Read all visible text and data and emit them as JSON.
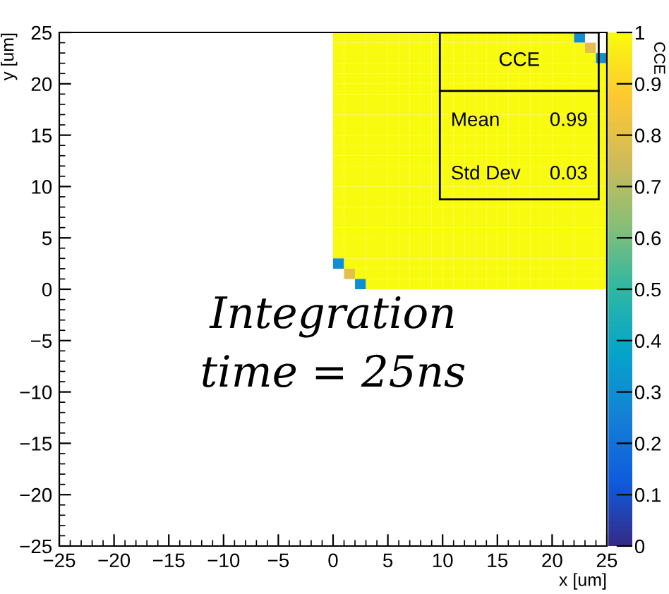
{
  "chart_data": {
    "type": "heatmap",
    "xlabel": "x [um]",
    "ylabel": "y [um]",
    "clabel": "CCE",
    "x": [
      0.5,
      1.5,
      2.5,
      3.5,
      4.5,
      5.5,
      6.5,
      7.5,
      8.5,
      9.5,
      10.5,
      11.5,
      12.5,
      13.5,
      14.5,
      15.5,
      16.5,
      17.5,
      18.5,
      19.5,
      20.5,
      21.5,
      22.5,
      23.5,
      24.5
    ],
    "y": [
      24.5,
      23.5,
      22.5,
      21.5,
      20.5,
      19.5,
      18.5,
      17.5,
      16.5,
      15.5,
      14.5,
      13.5,
      12.5,
      11.5,
      10.5,
      9.5,
      8.5,
      7.5,
      6.5,
      5.5,
      4.5,
      3.5,
      2.5,
      1.5,
      0.5
    ],
    "cells": [
      [
        1,
        1,
        1,
        1,
        1,
        1,
        1,
        1,
        1,
        1,
        1,
        1,
        1,
        1,
        1,
        1,
        1,
        1,
        1,
        1,
        1,
        1,
        0.3,
        null,
        null
      ],
      [
        1,
        1,
        1,
        1,
        1,
        1,
        1,
        1,
        1,
        1,
        1,
        1,
        1,
        1,
        1,
        1,
        1,
        1,
        1,
        1,
        1,
        1,
        1,
        0.8,
        null
      ],
      [
        1,
        1,
        1,
        1,
        1,
        1,
        1,
        1,
        1,
        1,
        1,
        1,
        1,
        1,
        1,
        1,
        1,
        1,
        1,
        1,
        1,
        1,
        1,
        1,
        0.3
      ],
      [
        1,
        1,
        1,
        1,
        1,
        1,
        1,
        1,
        1,
        1,
        1,
        1,
        1,
        1,
        1,
        1,
        1,
        1,
        1,
        1,
        1,
        1,
        1,
        1,
        1
      ],
      [
        1,
        1,
        1,
        1,
        1,
        1,
        1,
        1,
        1,
        1,
        1,
        1,
        1,
        1,
        1,
        1,
        1,
        1,
        1,
        1,
        1,
        1,
        1,
        1,
        1
      ],
      [
        1,
        1,
        1,
        1,
        1,
        1,
        1,
        1,
        1,
        1,
        1,
        1,
        1,
        1,
        1,
        1,
        1,
        1,
        1,
        1,
        1,
        1,
        1,
        1,
        1
      ],
      [
        1,
        1,
        1,
        1,
        1,
        1,
        1,
        1,
        1,
        1,
        1,
        1,
        1,
        1,
        1,
        1,
        1,
        1,
        1,
        1,
        1,
        1,
        1,
        1,
        1
      ],
      [
        1,
        1,
        1,
        1,
        1,
        1,
        1,
        1,
        1,
        1,
        1,
        1,
        1,
        1,
        1,
        1,
        1,
        1,
        1,
        1,
        1,
        1,
        1,
        1,
        1
      ],
      [
        1,
        1,
        1,
        1,
        1,
        1,
        1,
        1,
        1,
        1,
        1,
        1,
        1,
        1,
        1,
        1,
        1,
        1,
        1,
        1,
        1,
        1,
        1,
        1,
        1
      ],
      [
        1,
        1,
        1,
        1,
        1,
        1,
        1,
        1,
        1,
        1,
        1,
        1,
        1,
        1,
        1,
        1,
        1,
        1,
        1,
        1,
        1,
        1,
        1,
        1,
        1
      ],
      [
        1,
        1,
        1,
        1,
        1,
        1,
        1,
        1,
        1,
        1,
        1,
        1,
        1,
        1,
        1,
        1,
        1,
        1,
        1,
        1,
        1,
        1,
        1,
        1,
        1
      ],
      [
        1,
        1,
        1,
        1,
        1,
        1,
        1,
        1,
        1,
        1,
        1,
        1,
        1,
        1,
        1,
        1,
        1,
        1,
        1,
        1,
        1,
        1,
        1,
        1,
        1
      ],
      [
        1,
        1,
        1,
        1,
        1,
        1,
        1,
        1,
        1,
        1,
        1,
        1,
        1,
        1,
        1,
        1,
        1,
        1,
        1,
        1,
        1,
        1,
        1,
        1,
        1
      ],
      [
        1,
        1,
        1,
        1,
        1,
        1,
        1,
        1,
        1,
        1,
        1,
        1,
        1,
        1,
        1,
        1,
        1,
        1,
        1,
        1,
        1,
        1,
        1,
        1,
        1
      ],
      [
        1,
        1,
        1,
        1,
        1,
        1,
        1,
        1,
        1,
        1,
        1,
        1,
        1,
        1,
        1,
        1,
        1,
        1,
        1,
        1,
        1,
        1,
        1,
        1,
        1
      ],
      [
        1,
        1,
        1,
        1,
        1,
        1,
        1,
        1,
        1,
        1,
        1,
        1,
        1,
        1,
        1,
        1,
        1,
        1,
        1,
        1,
        1,
        1,
        1,
        1,
        1
      ],
      [
        1,
        1,
        1,
        1,
        1,
        1,
        1,
        1,
        1,
        1,
        1,
        1,
        1,
        1,
        1,
        1,
        1,
        1,
        1,
        1,
        1,
        1,
        1,
        1,
        1
      ],
      [
        1,
        1,
        1,
        1,
        1,
        1,
        1,
        1,
        1,
        1,
        1,
        1,
        1,
        1,
        1,
        1,
        1,
        1,
        1,
        1,
        1,
        1,
        1,
        1,
        1
      ],
      [
        1,
        1,
        1,
        1,
        1,
        1,
        1,
        1,
        1,
        1,
        1,
        1,
        1,
        1,
        1,
        1,
        1,
        1,
        1,
        1,
        1,
        1,
        1,
        1,
        1
      ],
      [
        1,
        1,
        1,
        1,
        1,
        1,
        1,
        1,
        1,
        1,
        1,
        1,
        1,
        1,
        1,
        1,
        1,
        1,
        1,
        1,
        1,
        1,
        1,
        1,
        1
      ],
      [
        1,
        1,
        1,
        1,
        1,
        1,
        1,
        1,
        1,
        1,
        1,
        1,
        1,
        1,
        1,
        1,
        1,
        1,
        1,
        1,
        1,
        1,
        1,
        1,
        1
      ],
      [
        1,
        1,
        1,
        1,
        1,
        1,
        1,
        1,
        1,
        1,
        1,
        1,
        1,
        1,
        1,
        1,
        1,
        1,
        1,
        1,
        1,
        1,
        1,
        1,
        1
      ],
      [
        0.3,
        1,
        1,
        1,
        1,
        1,
        1,
        1,
        1,
        1,
        1,
        1,
        1,
        1,
        1,
        1,
        1,
        1,
        1,
        1,
        1,
        1,
        1,
        1,
        1
      ],
      [
        null,
        0.8,
        1,
        1,
        1,
        1,
        1,
        1,
        1,
        1,
        1,
        1,
        1,
        1,
        1,
        1,
        1,
        1,
        1,
        1,
        1,
        1,
        1,
        1,
        1
      ],
      [
        null,
        null,
        0.3,
        1,
        1,
        1,
        1,
        1,
        1,
        1,
        1,
        1,
        1,
        1,
        1,
        1,
        1,
        1,
        1,
        1,
        1,
        1,
        1,
        1,
        1
      ]
    ],
    "xlim": [
      -25,
      25
    ],
    "ylim": [
      -25,
      25
    ],
    "xticks": [
      -25,
      -20,
      -15,
      -10,
      -5,
      0,
      5,
      10,
      15,
      20,
      25
    ],
    "yticks": [
      -25,
      -20,
      -15,
      -10,
      -5,
      0,
      5,
      10,
      15,
      20,
      25
    ],
    "clim": [
      0,
      1
    ],
    "cticks": [
      0,
      0.1,
      0.2,
      0.3,
      0.4,
      0.5,
      0.6,
      0.7,
      0.8,
      0.9,
      1
    ],
    "annotations": [
      "CCE",
      "Mean",
      "0.99",
      "Std Dev",
      "0.03",
      "Integration\ntime = 25ns"
    ]
  }
}
